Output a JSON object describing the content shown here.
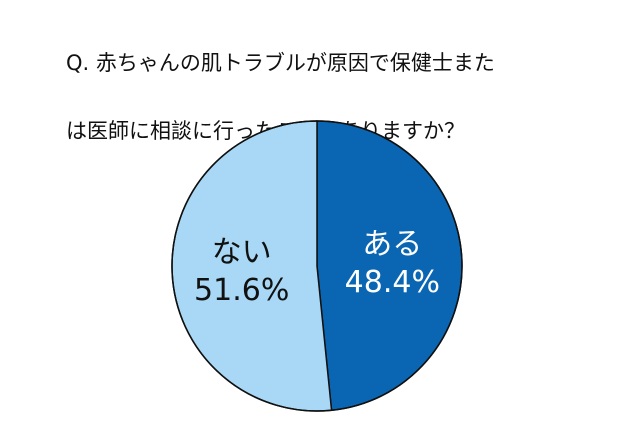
{
  "chart_data": {
    "type": "pie",
    "title": "Q. 赤ちゃんの肌トラブルが原因で保健士または医師に相談に行ったことはありますか？",
    "title_lines": [
      "Q. 赤ちゃんの肌トラブルが原因で保健士また",
      "は医師に相談に行ったことはありますか？"
    ],
    "slices": [
      {
        "label": "ある",
        "value": 48.4,
        "value_label": "48.4%",
        "color": "#0a66b2",
        "text_color": "#ffffff"
      },
      {
        "label": "ない",
        "value": 51.6,
        "value_label": "51.6%",
        "color": "#a8d8f5",
        "text_color": "#111111"
      }
    ],
    "start": "12 o'clock",
    "direction": "clockwise",
    "border_color": "#111111"
  }
}
